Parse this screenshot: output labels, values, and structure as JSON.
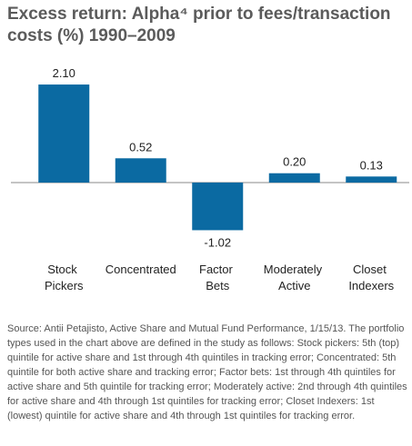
{
  "chart_data": {
    "type": "bar",
    "title": "Excess return: Alpha⁴ prior to fees/transaction costs (%) 1990–2009",
    "categories": [
      "Stock Pickers",
      "Concentrated",
      "Factor Bets",
      "Moderately Active",
      "Closet Indexers"
    ],
    "values": [
      2.1,
      0.52,
      -1.02,
      0.2,
      0.13
    ],
    "value_labels": [
      "2.10",
      "0.52",
      "-1.02",
      "0.20",
      "0.13"
    ],
    "color": "#0b6aa2"
  },
  "source": "Source: Antii Petajisto, Active Share and Mutual Fund Performance, 1/15/13. The portfolio types used in the chart above are defined in the study as follows: Stock pickers: 5th (top) quintile for active share and 1st through 4th quintiles in tracking error; Concentrated: 5th quintile for both active share and tracking error; Factor bets: 1st through 4th quintiles for active share and 5th quintile for tracking error; Moderately active: 2nd through 4th quintiles for active share and 4th through 1st quintiles for tracking error; Closet Indexers: 1st (lowest) quintile for active share and 4th through 1st quintiles for tracking error."
}
